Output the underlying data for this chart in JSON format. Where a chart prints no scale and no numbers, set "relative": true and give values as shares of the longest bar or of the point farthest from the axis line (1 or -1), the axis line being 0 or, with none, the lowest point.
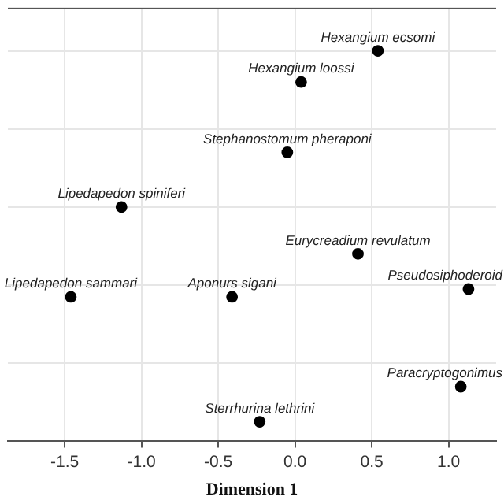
{
  "chart_data": {
    "type": "scatter",
    "xlabel": "Dimension 1",
    "relative": true,
    "x": [
      0.54,
      0.04,
      -0.05,
      -1.13,
      0.41,
      1.13,
      -1.46,
      -0.41,
      1.08,
      -0.23
    ],
    "series": [
      {
        "color": "#000000",
        "values": [
          1,
          0.92,
          0.74,
          0.6,
          0.48,
          0.39,
          0.37,
          0.37,
          0.14,
          0.05
        ]
      }
    ],
    "annotations": [
      {
        "text": "Hexangium ecsomi",
        "x": 0.54,
        "y": 1
      },
      {
        "text": "Hexangium loossi",
        "x": 0.04,
        "y": 0.92
      },
      {
        "text": "Stephanostomum pheraponi",
        "x": -0.05,
        "y": 0.74
      },
      {
        "text": "Lipedapedon spiniferi",
        "x": -1.13,
        "y": 0.6
      },
      {
        "text": "Eurycreadium revulatum",
        "x": 0.41,
        "y": 0.48
      },
      {
        "text": "Pseudosiphoderoid",
        "x": 1.13,
        "y": 0.39
      },
      {
        "text": "Lipedapedon sammari",
        "x": -1.46,
        "y": 0.37
      },
      {
        "text": "Aponurs sigani",
        "x": -0.41,
        "y": 0.37
      },
      {
        "text": "Paracryptogonimus",
        "x": 1.08,
        "y": 0.14
      },
      {
        "text": "Sterrhurina lethrini",
        "x": -0.23,
        "y": 0.05
      }
    ],
    "xlim": [
      -1.87,
      1.31
    ],
    "xticks": [
      -1.5,
      {
        "value": -1,
        "label": "-1.0"
      },
      -0.5,
      {
        "value": 0,
        "label": "0.0"
      },
      0.5,
      {
        "value": 1,
        "label": "1.0"
      }
    ],
    "grid": true,
    "marker": "circle",
    "legend": false
  }
}
